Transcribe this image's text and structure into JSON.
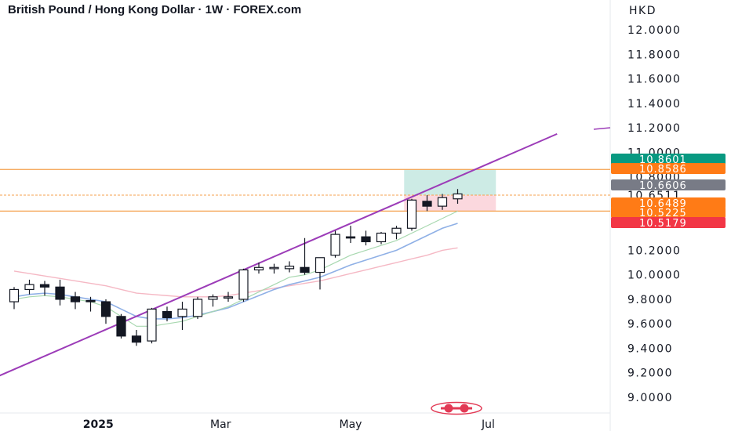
{
  "header": {
    "title": "British Pound / Hong Kong Dollar · 1W · FOREX.com",
    "currency": "HKD"
  },
  "colors": {
    "background": "#ffffff",
    "trendline": "#9c3cb8",
    "support_resistance": "#f5a04c",
    "ema_fast": "#8fb0e6",
    "ema_slow": "#f5b8c4",
    "ema_short": "#a8d8b0",
    "profit_zone": "#cdebe5",
    "loss_zone": "#fbd8de",
    "tag_green": "#089981",
    "tag_orange": "#ff7b16",
    "tag_gray": "#787b86",
    "tag_red": "#f23645"
  },
  "chart_data": {
    "type": "candlestick",
    "title": "British Pound / Hong Kong Dollar · 1W · FOREX.com",
    "ylabel": "HKD",
    "ylim": [
      8.9,
      12.2
    ],
    "y_ticks": [
      "12.0000",
      "11.8000",
      "11.6000",
      "11.4000",
      "11.2000",
      "11.0000",
      "10.8000",
      "10.6511",
      "10.2000",
      "10.0000",
      "9.8000",
      "9.6000",
      "9.4000",
      "9.2000",
      "9.0000"
    ],
    "x_ticks": [
      {
        "label": "2025",
        "bold": true,
        "index": 5.5
      },
      {
        "label": "Mar",
        "bold": false,
        "index": 13.5
      },
      {
        "label": "May",
        "bold": false,
        "index": 22
      },
      {
        "label": "Jul",
        "bold": false,
        "index": 31
      }
    ],
    "candles": [
      {
        "o": 9.78,
        "h": 9.9,
        "l": 9.72,
        "c": 9.88
      },
      {
        "o": 9.88,
        "h": 9.96,
        "l": 9.84,
        "c": 9.92
      },
      {
        "o": 9.92,
        "h": 9.95,
        "l": 9.83,
        "c": 9.9
      },
      {
        "o": 9.9,
        "h": 9.96,
        "l": 9.75,
        "c": 9.8
      },
      {
        "o": 9.82,
        "h": 9.86,
        "l": 9.72,
        "c": 9.78
      },
      {
        "o": 9.79,
        "h": 9.82,
        "l": 9.7,
        "c": 9.78
      },
      {
        "o": 9.78,
        "h": 9.8,
        "l": 9.6,
        "c": 9.66
      },
      {
        "o": 9.66,
        "h": 9.68,
        "l": 9.48,
        "c": 9.5
      },
      {
        "o": 9.5,
        "h": 9.55,
        "l": 9.42,
        "c": 9.45
      },
      {
        "o": 9.46,
        "h": 9.73,
        "l": 9.44,
        "c": 9.72
      },
      {
        "o": 9.7,
        "h": 9.74,
        "l": 9.62,
        "c": 9.65
      },
      {
        "o": 9.66,
        "h": 9.78,
        "l": 9.55,
        "c": 9.72
      },
      {
        "o": 9.66,
        "h": 9.82,
        "l": 9.64,
        "c": 9.8
      },
      {
        "o": 9.8,
        "h": 9.84,
        "l": 9.74,
        "c": 9.82
      },
      {
        "o": 9.81,
        "h": 9.86,
        "l": 9.78,
        "c": 9.82
      },
      {
        "o": 9.8,
        "h": 10.05,
        "l": 9.78,
        "c": 10.04
      },
      {
        "o": 10.04,
        "h": 10.1,
        "l": 10.01,
        "c": 10.06
      },
      {
        "o": 10.05,
        "h": 10.09,
        "l": 10.01,
        "c": 10.06
      },
      {
        "o": 10.05,
        "h": 10.11,
        "l": 10.02,
        "c": 10.07
      },
      {
        "o": 10.06,
        "h": 10.3,
        "l": 10.0,
        "c": 10.02
      },
      {
        "o": 10.02,
        "h": 10.12,
        "l": 9.88,
        "c": 10.14
      },
      {
        "o": 10.16,
        "h": 10.36,
        "l": 10.14,
        "c": 10.33
      },
      {
        "o": 10.31,
        "h": 10.4,
        "l": 10.26,
        "c": 10.3
      },
      {
        "o": 10.31,
        "h": 10.36,
        "l": 10.24,
        "c": 10.27
      },
      {
        "o": 10.27,
        "h": 10.35,
        "l": 10.25,
        "c": 10.34
      },
      {
        "o": 10.34,
        "h": 10.4,
        "l": 10.29,
        "c": 10.38
      },
      {
        "o": 10.38,
        "h": 10.62,
        "l": 10.36,
        "c": 10.61
      },
      {
        "o": 10.6,
        "h": 10.65,
        "l": 10.52,
        "c": 10.56
      },
      {
        "o": 10.56,
        "h": 10.66,
        "l": 10.53,
        "c": 10.63
      },
      {
        "o": 10.62,
        "h": 10.7,
        "l": 10.58,
        "c": 10.66
      }
    ],
    "ema_short": [
      9.8,
      9.82,
      9.83,
      9.82,
      9.8,
      9.78,
      9.74,
      9.66,
      9.58,
      9.58,
      9.6,
      9.62,
      9.66,
      9.7,
      9.74,
      9.8,
      9.86,
      9.92,
      9.98,
      10.0,
      10.04,
      10.1,
      10.16,
      10.2,
      10.24,
      10.28,
      10.34,
      10.4,
      10.46,
      10.52
    ],
    "ema_fast": [
      9.82,
      9.84,
      9.85,
      9.84,
      9.82,
      9.8,
      9.78,
      9.72,
      9.66,
      9.64,
      9.64,
      9.65,
      9.67,
      9.7,
      9.73,
      9.78,
      9.83,
      9.88,
      9.92,
      9.95,
      9.98,
      10.03,
      10.08,
      10.12,
      10.16,
      10.2,
      10.26,
      10.32,
      10.38,
      10.42
    ],
    "ema_slow": [
      10.03,
      10.01,
      9.99,
      9.97,
      9.95,
      9.93,
      9.91,
      9.88,
      9.85,
      9.84,
      9.83,
      9.82,
      9.82,
      9.82,
      9.83,
      9.85,
      9.87,
      9.89,
      9.91,
      9.93,
      9.95,
      9.98,
      10.01,
      10.04,
      10.07,
      10.1,
      10.13,
      10.16,
      10.2,
      10.22
    ],
    "trendline": {
      "start": {
        "index": -2,
        "value": 9.12
      },
      "end": {
        "index": 35.5,
        "value": 11.15
      }
    },
    "horizontal_lines": [
      10.86,
      10.65,
      10.52
    ],
    "position": {
      "start_index": 25.5,
      "end_index": 31.5,
      "entry": 10.65,
      "target": 10.86,
      "stop": 10.52
    },
    "price_tags": [
      {
        "value": 10.8601,
        "label": "10.8601",
        "color": "#089981"
      },
      {
        "value": 10.8586,
        "label": "10.8586",
        "color": "#ff7b16"
      },
      {
        "value": 10.6606,
        "label": "10.6606",
        "color": "#787b86"
      },
      {
        "value": 10.6489,
        "label": "10.6489",
        "color": "#ff7b16"
      },
      {
        "value": 10.5225,
        "label": "10.5225",
        "color": "#ff7b16"
      },
      {
        "value": 10.5179,
        "label": "10.5179",
        "color": "#f23645"
      }
    ]
  }
}
